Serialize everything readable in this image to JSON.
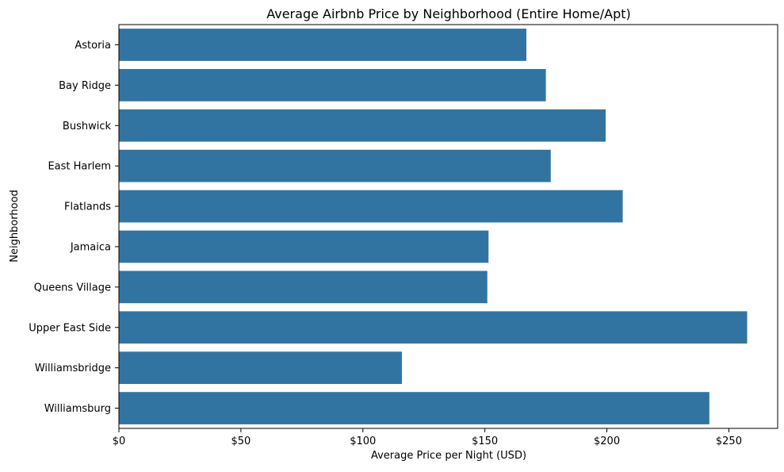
{
  "chart_data": {
    "type": "bar",
    "orientation": "horizontal",
    "title": "Average Airbnb Price by Neighborhood (Entire Home/Apt)",
    "xlabel": "Average Price per Night (USD)",
    "ylabel": "Neighborhood",
    "categories": [
      "Astoria",
      "Bay Ridge",
      "Bushwick",
      "East Harlem",
      "Flatlands",
      "Jamaica",
      "Queens Village",
      "Upper East Side",
      "Williamsbridge",
      "Williamsburg"
    ],
    "values": [
      167,
      175,
      199.5,
      177,
      206.5,
      151.5,
      151,
      257.5,
      116,
      242
    ],
    "xlim": [
      0,
      270
    ],
    "xticks": [
      0,
      50,
      100,
      150,
      200,
      250
    ],
    "xtick_labels": [
      "$0",
      "$50",
      "$100",
      "$150",
      "$200",
      "$250"
    ],
    "grid": false,
    "bar_color": "#3274a1"
  }
}
